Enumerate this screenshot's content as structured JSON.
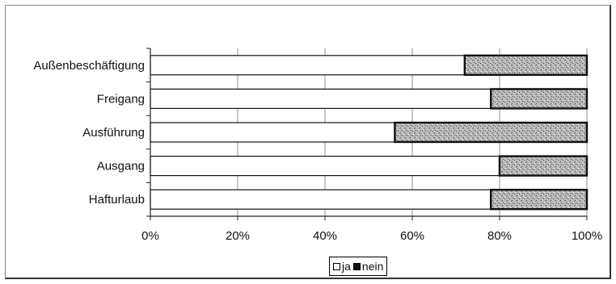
{
  "chart_data": {
    "type": "bar",
    "orientation": "horizontal",
    "stacked": "percent",
    "categories": [
      "Außenbeschäftigung",
      "Freigang",
      "Ausführung",
      "Ausgang",
      "Hafturlaub"
    ],
    "series": [
      {
        "name": "ja",
        "values": [
          72,
          78,
          56,
          80,
          78
        ],
        "color": "#ffffff"
      },
      {
        "name": "nein",
        "values": [
          28,
          22,
          44,
          20,
          22
        ],
        "color": "#9a9a9a"
      }
    ],
    "xlim": [
      0,
      100
    ],
    "xticks": [
      "0%",
      "20%",
      "40%",
      "60%",
      "80%",
      "100%"
    ],
    "grid": true,
    "legend_position": "bottom"
  }
}
